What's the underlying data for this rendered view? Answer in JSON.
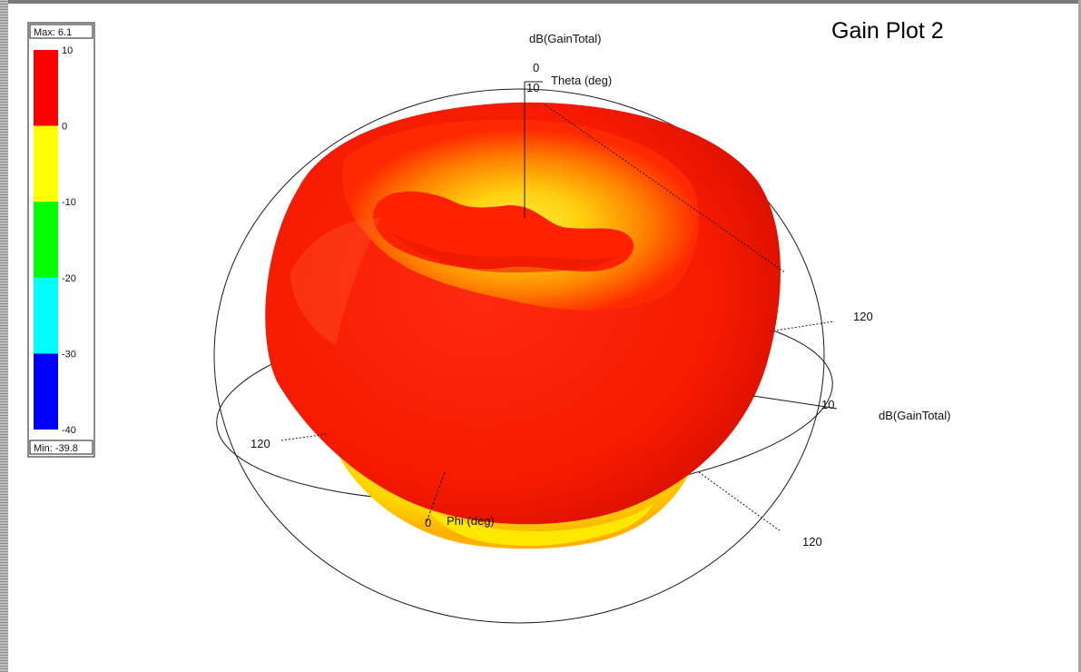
{
  "window": {
    "title": "Gain Plot 2"
  },
  "colors": {
    "pattern_red": "#ff1a00",
    "pattern_yellow": "#ffff00",
    "axis_line": "#1a1a1a",
    "frame": "#7a7a7a"
  },
  "chart_data": {
    "type": "heatmap",
    "subtype": "3d-radiation-pattern",
    "title": "Gain Plot 2",
    "quantity": "dB(GainTotal)",
    "legend": {
      "placement": "top-left",
      "max_label": "Max: 6.1",
      "min_label": "Min: -39.8",
      "max": 6.1,
      "min": -39.8,
      "ticks": [
        "10",
        "0",
        "-10",
        "-20",
        "-30",
        "-40"
      ],
      "bands": [
        {
          "from": 0,
          "to": 10,
          "color": "#ff0000"
        },
        {
          "from": -10,
          "to": 0,
          "color": "#ffff00"
        },
        {
          "from": -20,
          "to": -10,
          "color": "#00ff00"
        },
        {
          "from": -30,
          "to": -20,
          "color": "#00ffff"
        },
        {
          "from": -40,
          "to": -30,
          "color": "#0000ff"
        }
      ]
    },
    "axes": {
      "z_label": "dB(GainTotal)",
      "z_tick_zero": "0",
      "z_tick_ten": "10",
      "theta_label": "Theta (deg)",
      "phi_label": "Phi (deg)",
      "phi_tick_zero": "0",
      "x_label": "dB(GainTotal)",
      "x_tick_ten": "10",
      "ticks_120": [
        "120",
        "120",
        "120"
      ]
    }
  }
}
